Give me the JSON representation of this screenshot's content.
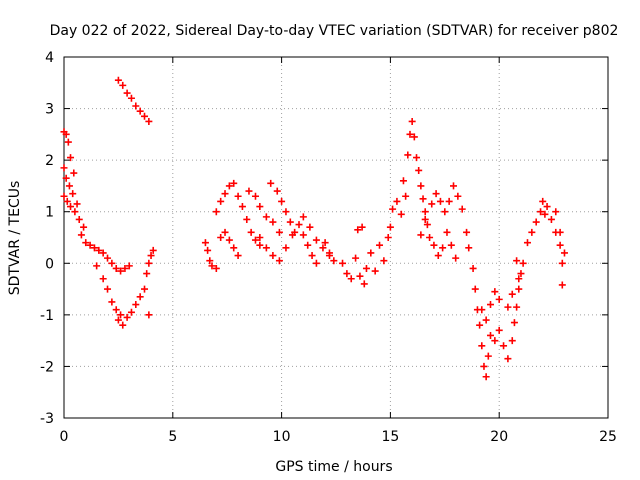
{
  "chart_data": {
    "type": "scatter",
    "title": "Day 022 of 2022, Sidereal Day-to-day VTEC variation (SDTVAR) for receiver p802",
    "xlabel": "GPS time / hours",
    "ylabel": "SDTVAR / TECUs",
    "xlim": [
      0,
      25
    ],
    "ylim": [
      -3,
      4
    ],
    "xticks": [
      0,
      5,
      10,
      15,
      20,
      25
    ],
    "yticks": [
      -3,
      -2,
      -1,
      0,
      1,
      2,
      3,
      4
    ],
    "grid": true,
    "marker": "+",
    "color": "#ff0000",
    "series": [
      {
        "name": "p802-main",
        "points": [
          [
            0.0,
            2.55
          ],
          [
            0.1,
            2.5
          ],
          [
            0.2,
            2.35
          ],
          [
            0.3,
            2.05
          ],
          [
            0.45,
            1.75
          ],
          [
            0.0,
            1.85
          ],
          [
            0.1,
            1.65
          ],
          [
            0.25,
            1.5
          ],
          [
            0.4,
            1.35
          ],
          [
            0.6,
            1.15
          ],
          [
            0.0,
            1.3
          ],
          [
            0.15,
            1.2
          ],
          [
            0.3,
            1.1
          ],
          [
            0.5,
            1.0
          ],
          [
            0.7,
            0.85
          ],
          [
            0.9,
            0.7
          ],
          [
            0.8,
            0.55
          ],
          [
            1.0,
            0.4
          ],
          [
            1.2,
            0.35
          ],
          [
            1.4,
            0.3
          ],
          [
            1.6,
            0.25
          ],
          [
            1.8,
            0.2
          ],
          [
            2.0,
            0.1
          ],
          [
            2.2,
            0.0
          ],
          [
            2.4,
            -0.1
          ],
          [
            2.6,
            -0.15
          ],
          [
            2.8,
            -0.1
          ],
          [
            3.0,
            -0.05
          ],
          [
            1.5,
            -0.05
          ],
          [
            1.8,
            -0.3
          ],
          [
            2.0,
            -0.5
          ],
          [
            2.2,
            -0.75
          ],
          [
            2.4,
            -0.9
          ],
          [
            2.6,
            -1.0
          ],
          [
            2.5,
            -1.1
          ],
          [
            2.7,
            -1.2
          ],
          [
            2.9,
            -1.05
          ],
          [
            3.1,
            -0.95
          ],
          [
            3.3,
            -0.8
          ],
          [
            3.5,
            -0.65
          ],
          [
            3.7,
            -0.5
          ],
          [
            3.9,
            -1.0
          ],
          [
            3.8,
            -0.2
          ],
          [
            3.9,
            0.0
          ],
          [
            4.0,
            0.15
          ],
          [
            4.1,
            0.25
          ],
          [
            2.5,
            3.55
          ],
          [
            2.7,
            3.45
          ],
          [
            2.9,
            3.3
          ],
          [
            3.1,
            3.2
          ],
          [
            3.3,
            3.05
          ],
          [
            3.5,
            2.95
          ],
          [
            3.7,
            2.85
          ],
          [
            3.9,
            2.75
          ],
          [
            6.5,
            0.4
          ],
          [
            6.6,
            0.25
          ],
          [
            6.7,
            0.05
          ],
          [
            6.8,
            -0.05
          ],
          [
            7.0,
            -0.1
          ],
          [
            7.2,
            0.5
          ],
          [
            7.4,
            0.6
          ],
          [
            7.6,
            0.45
          ],
          [
            7.8,
            0.3
          ],
          [
            8.0,
            0.15
          ],
          [
            7.0,
            1.0
          ],
          [
            7.2,
            1.2
          ],
          [
            7.4,
            1.35
          ],
          [
            7.6,
            1.5
          ],
          [
            7.8,
            1.55
          ],
          [
            8.0,
            1.3
          ],
          [
            8.2,
            1.1
          ],
          [
            8.4,
            0.85
          ],
          [
            8.6,
            0.6
          ],
          [
            8.8,
            0.45
          ],
          [
            9.0,
            0.35
          ],
          [
            8.5,
            1.4
          ],
          [
            8.8,
            1.3
          ],
          [
            9.0,
            1.1
          ],
          [
            9.3,
            0.9
          ],
          [
            9.6,
            0.8
          ],
          [
            9.9,
            0.6
          ],
          [
            9.5,
            1.55
          ],
          [
            9.8,
            1.4
          ],
          [
            10.0,
            1.2
          ],
          [
            10.2,
            1.0
          ],
          [
            10.4,
            0.8
          ],
          [
            10.6,
            0.6
          ],
          [
            9.0,
            0.5
          ],
          [
            9.3,
            0.3
          ],
          [
            9.6,
            0.15
          ],
          [
            9.9,
            0.05
          ],
          [
            10.2,
            0.3
          ],
          [
            10.5,
            0.55
          ],
          [
            10.8,
            0.75
          ],
          [
            11.0,
            0.55
          ],
          [
            11.2,
            0.35
          ],
          [
            11.4,
            0.15
          ],
          [
            11.6,
            0.0
          ],
          [
            11.0,
            0.9
          ],
          [
            11.3,
            0.7
          ],
          [
            11.6,
            0.45
          ],
          [
            11.9,
            0.3
          ],
          [
            12.2,
            0.15
          ],
          [
            12.0,
            0.4
          ],
          [
            12.2,
            0.2
          ],
          [
            12.4,
            0.05
          ],
          [
            12.8,
            0.0
          ],
          [
            13.0,
            -0.2
          ],
          [
            13.2,
            -0.3
          ],
          [
            13.4,
            0.1
          ],
          [
            13.6,
            -0.25
          ],
          [
            13.8,
            -0.4
          ],
          [
            13.5,
            0.65
          ],
          [
            13.7,
            0.7
          ],
          [
            13.9,
            -0.1
          ],
          [
            14.1,
            0.2
          ],
          [
            14.3,
            -0.15
          ],
          [
            14.5,
            0.35
          ],
          [
            14.7,
            0.05
          ],
          [
            14.9,
            0.5
          ],
          [
            15.0,
            0.7
          ],
          [
            15.1,
            1.05
          ],
          [
            15.3,
            1.2
          ],
          [
            15.5,
            0.95
          ],
          [
            15.7,
            1.3
          ],
          [
            15.6,
            1.6
          ],
          [
            15.8,
            2.1
          ],
          [
            15.9,
            2.5
          ],
          [
            16.0,
            2.75
          ],
          [
            16.1,
            2.45
          ],
          [
            16.2,
            2.05
          ],
          [
            16.3,
            1.8
          ],
          [
            16.4,
            1.5
          ],
          [
            16.5,
            1.25
          ],
          [
            16.6,
            1.0
          ],
          [
            16.7,
            0.75
          ],
          [
            16.8,
            0.5
          ],
          [
            17.0,
            0.35
          ],
          [
            17.2,
            0.15
          ],
          [
            17.4,
            0.3
          ],
          [
            17.6,
            0.6
          ],
          [
            17.8,
            0.35
          ],
          [
            18.0,
            0.1
          ],
          [
            16.4,
            0.55
          ],
          [
            16.6,
            0.85
          ],
          [
            16.9,
            1.15
          ],
          [
            17.1,
            1.35
          ],
          [
            17.3,
            1.2
          ],
          [
            17.5,
            1.0
          ],
          [
            17.7,
            1.2
          ],
          [
            17.9,
            1.5
          ],
          [
            18.1,
            1.3
          ],
          [
            18.3,
            1.05
          ],
          [
            18.5,
            0.6
          ],
          [
            18.6,
            0.3
          ],
          [
            18.8,
            -0.1
          ],
          [
            18.9,
            -0.5
          ],
          [
            19.0,
            -0.9
          ],
          [
            19.1,
            -1.2
          ],
          [
            19.2,
            -1.6
          ],
          [
            19.3,
            -2.0
          ],
          [
            19.4,
            -2.2
          ],
          [
            19.5,
            -1.8
          ],
          [
            19.6,
            -1.4
          ],
          [
            19.2,
            -0.9
          ],
          [
            19.4,
            -1.1
          ],
          [
            19.6,
            -0.8
          ],
          [
            19.8,
            -0.55
          ],
          [
            20.0,
            -0.7
          ],
          [
            19.8,
            -1.5
          ],
          [
            20.0,
            -1.3
          ],
          [
            20.2,
            -1.6
          ],
          [
            20.4,
            -1.85
          ],
          [
            20.6,
            -1.5
          ],
          [
            20.7,
            -1.15
          ],
          [
            20.8,
            -0.85
          ],
          [
            20.9,
            -0.5
          ],
          [
            21.0,
            -0.2
          ],
          [
            20.8,
            0.05
          ],
          [
            20.4,
            -0.85
          ],
          [
            20.6,
            -0.6
          ],
          [
            20.9,
            -0.3
          ],
          [
            21.1,
            0.0
          ],
          [
            21.3,
            0.4
          ],
          [
            21.5,
            0.6
          ],
          [
            21.7,
            0.8
          ],
          [
            21.9,
            1.0
          ],
          [
            22.1,
            0.95
          ],
          [
            22.0,
            1.2
          ],
          [
            22.2,
            1.1
          ],
          [
            22.4,
            0.85
          ],
          [
            22.6,
            0.6
          ],
          [
            22.8,
            0.35
          ],
          [
            22.6,
            1.0
          ],
          [
            22.8,
            0.6
          ],
          [
            23.0,
            0.2
          ],
          [
            22.9,
            0.0
          ],
          [
            22.9,
            -0.42
          ]
        ]
      }
    ]
  }
}
